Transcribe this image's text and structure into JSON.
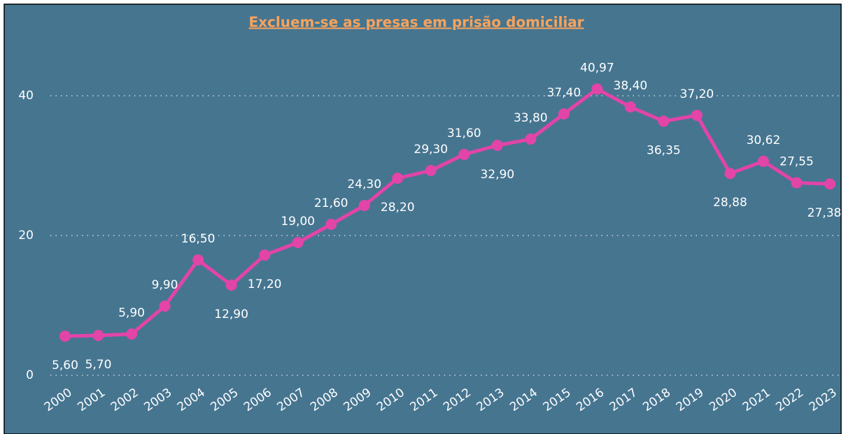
{
  "chart_data": {
    "type": "line",
    "title": "Excluem-se as presas em prisão domiciliar",
    "categories": [
      "2000",
      "2001",
      "2002",
      "2003",
      "2004",
      "2005",
      "2006",
      "2007",
      "2008",
      "2009",
      "2010",
      "2011",
      "2012",
      "2013",
      "2014",
      "2015",
      "2016",
      "2017",
      "2018",
      "2019",
      "2020",
      "2021",
      "2022",
      "2023"
    ],
    "series": [
      {
        "name": "",
        "color": "#e244a8",
        "values": [
          5.6,
          5.7,
          5.9,
          9.9,
          16.5,
          12.9,
          17.2,
          19.0,
          21.6,
          24.3,
          28.2,
          29.3,
          31.6,
          32.9,
          33.8,
          37.4,
          40.97,
          38.4,
          36.35,
          37.2,
          28.88,
          30.62,
          27.55,
          27.38
        ],
        "value_labels": [
          "5,60",
          "5,70",
          "5,90",
          "9,90",
          "16,50",
          "12,90",
          "17,20",
          "19,00",
          "21,60",
          "24,30",
          "28,20",
          "29,30",
          "31,60",
          "32,90",
          "33,80",
          "37,40",
          "40,97",
          "38,40",
          "36,35",
          "37,20",
          "28,88",
          "30,62",
          "27,55",
          "27,38"
        ]
      }
    ],
    "ylim": [
      0,
      46.5
    ],
    "yticks": [
      0,
      20,
      40
    ],
    "grid": true
  }
}
